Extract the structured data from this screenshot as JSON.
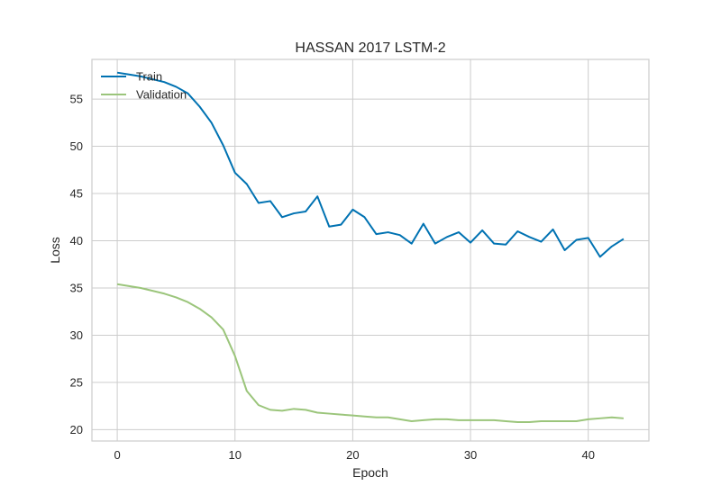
{
  "chart_data": {
    "type": "line",
    "title": "HASSAN 2017 LSTM-2",
    "xlabel": "Epoch",
    "ylabel": "Loss",
    "xlim": [
      -2.15,
      45.15
    ],
    "ylim": [
      18.8,
      59.2
    ],
    "xticks": [
      0,
      10,
      20,
      30,
      40
    ],
    "yticks": [
      20,
      25,
      30,
      35,
      40,
      45,
      50,
      55
    ],
    "grid": true,
    "legend_position": "top-left",
    "x": [
      0,
      1,
      2,
      3,
      4,
      5,
      6,
      7,
      8,
      9,
      10,
      11,
      12,
      13,
      14,
      15,
      16,
      17,
      18,
      19,
      20,
      21,
      22,
      23,
      24,
      25,
      26,
      27,
      28,
      29,
      30,
      31,
      32,
      33,
      34,
      35,
      36,
      37,
      38,
      39,
      40,
      41,
      42,
      43
    ],
    "series": [
      {
        "name": "Train",
        "color": "#0072b2",
        "values": [
          57.8,
          57.6,
          57.4,
          57.1,
          56.8,
          56.3,
          55.6,
          54.2,
          52.5,
          50.1,
          47.2,
          46.0,
          44.0,
          44.2,
          42.5,
          42.9,
          43.1,
          44.7,
          41.5,
          41.7,
          43.3,
          42.5,
          40.7,
          40.9,
          40.6,
          39.7,
          41.8,
          39.7,
          40.4,
          40.9,
          39.8,
          41.1,
          39.7,
          39.6,
          41.0,
          40.4,
          39.9,
          41.2,
          39.0,
          40.1,
          40.3,
          38.3,
          39.4,
          40.2
        ]
      },
      {
        "name": "Validation",
        "color": "#9bc57b",
        "values": [
          35.4,
          35.2,
          35.0,
          34.7,
          34.4,
          34.0,
          33.5,
          32.8,
          31.9,
          30.6,
          27.8,
          24.1,
          22.6,
          22.1,
          22.0,
          22.2,
          22.1,
          21.8,
          21.7,
          21.6,
          21.5,
          21.4,
          21.3,
          21.3,
          21.1,
          20.9,
          21.0,
          21.1,
          21.1,
          21.0,
          21.0,
          21.0,
          21.0,
          20.9,
          20.8,
          20.8,
          20.9,
          20.9,
          20.9,
          20.9,
          21.1,
          21.2,
          21.3,
          21.2
        ]
      }
    ]
  }
}
